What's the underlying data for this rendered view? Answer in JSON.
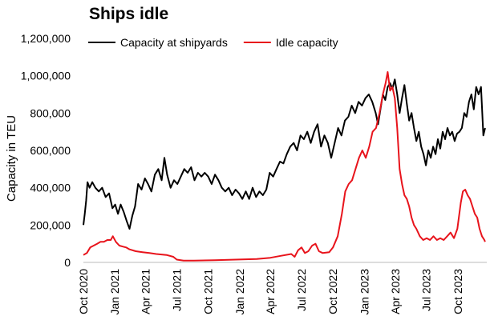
{
  "chart_data": {
    "type": "line",
    "title": "Ships idle",
    "ylabel": "Capacity in TEU",
    "xlabel": "",
    "ylim": [
      0,
      1200000
    ],
    "yticks": [
      0,
      200000,
      400000,
      600000,
      800000,
      1000000,
      1200000
    ],
    "ytick_labels": [
      "0",
      "200,000",
      "400,000",
      "600,000",
      "800,000",
      "1,000,000",
      "1,200,000"
    ],
    "xticks": [
      "2020-10-01",
      "2021-01-01",
      "2021-04-01",
      "2021-07-01",
      "2021-10-01",
      "2022-01-01",
      "2022-04-01",
      "2022-07-01",
      "2022-10-01",
      "2023-01-01",
      "2023-04-01",
      "2023-07-01",
      "2023-10-01"
    ],
    "xtick_labels": [
      "Oct 2020",
      "Jan 2021",
      "Apr 2021",
      "Jul 2021",
      "Oct 2021",
      "Jan 2022",
      "Apr 2022",
      "Jul 2022",
      "Oct 2022",
      "Jan 2023",
      "Apr 2023",
      "Jul 2023",
      "Oct 2023"
    ],
    "xlim": [
      "2020-10-01",
      "2023-12-25"
    ],
    "grid": false,
    "legend": "top",
    "series": [
      {
        "name": "Capacity at shipyards",
        "color": "#000000",
        "points": [
          [
            "2020-10-01",
            200000
          ],
          [
            "2020-10-05",
            260000
          ],
          [
            "2020-10-09",
            330000
          ],
          [
            "2020-10-13",
            430000
          ],
          [
            "2020-10-19",
            400000
          ],
          [
            "2020-10-27",
            430000
          ],
          [
            "2020-11-05",
            400000
          ],
          [
            "2020-11-15",
            380000
          ],
          [
            "2020-11-25",
            400000
          ],
          [
            "2020-12-05",
            350000
          ],
          [
            "2020-12-15",
            370000
          ],
          [
            "2020-12-25",
            290000
          ],
          [
            "2021-01-02",
            310000
          ],
          [
            "2021-01-10",
            260000
          ],
          [
            "2021-01-18",
            310000
          ],
          [
            "2021-01-27",
            270000
          ],
          [
            "2021-02-05",
            220000
          ],
          [
            "2021-02-13",
            180000
          ],
          [
            "2021-02-21",
            250000
          ],
          [
            "2021-03-01",
            300000
          ],
          [
            "2021-03-10",
            420000
          ],
          [
            "2021-03-20",
            390000
          ],
          [
            "2021-03-30",
            450000
          ],
          [
            "2021-04-08",
            420000
          ],
          [
            "2021-04-18",
            380000
          ],
          [
            "2021-04-28",
            470000
          ],
          [
            "2021-05-08",
            500000
          ],
          [
            "2021-05-18",
            440000
          ],
          [
            "2021-05-26",
            560000
          ],
          [
            "2021-06-03",
            470000
          ],
          [
            "2021-06-13",
            400000
          ],
          [
            "2021-06-23",
            440000
          ],
          [
            "2021-07-03",
            420000
          ],
          [
            "2021-07-13",
            460000
          ],
          [
            "2021-07-23",
            500000
          ],
          [
            "2021-08-02",
            480000
          ],
          [
            "2021-08-12",
            510000
          ],
          [
            "2021-08-22",
            440000
          ],
          [
            "2021-09-01",
            480000
          ],
          [
            "2021-09-11",
            460000
          ],
          [
            "2021-09-21",
            480000
          ],
          [
            "2021-10-01",
            460000
          ],
          [
            "2021-10-11",
            420000
          ],
          [
            "2021-10-21",
            470000
          ],
          [
            "2021-10-31",
            440000
          ],
          [
            "2021-11-10",
            400000
          ],
          [
            "2021-11-20",
            380000
          ],
          [
            "2021-11-30",
            400000
          ],
          [
            "2021-12-10",
            360000
          ],
          [
            "2021-12-20",
            390000
          ],
          [
            "2021-12-30",
            370000
          ],
          [
            "2022-01-09",
            340000
          ],
          [
            "2022-01-19",
            380000
          ],
          [
            "2022-01-29",
            340000
          ],
          [
            "2022-02-08",
            400000
          ],
          [
            "2022-02-18",
            350000
          ],
          [
            "2022-02-28",
            380000
          ],
          [
            "2022-03-10",
            360000
          ],
          [
            "2022-03-20",
            390000
          ],
          [
            "2022-03-30",
            480000
          ],
          [
            "2022-04-09",
            460000
          ],
          [
            "2022-04-19",
            500000
          ],
          [
            "2022-04-29",
            540000
          ],
          [
            "2022-05-09",
            530000
          ],
          [
            "2022-05-19",
            580000
          ],
          [
            "2022-05-29",
            620000
          ],
          [
            "2022-06-08",
            640000
          ],
          [
            "2022-06-18",
            600000
          ],
          [
            "2022-06-28",
            680000
          ],
          [
            "2022-07-08",
            660000
          ],
          [
            "2022-07-18",
            700000
          ],
          [
            "2022-07-28",
            640000
          ],
          [
            "2022-08-07",
            700000
          ],
          [
            "2022-08-17",
            740000
          ],
          [
            "2022-08-27",
            620000
          ],
          [
            "2022-09-06",
            680000
          ],
          [
            "2022-09-16",
            640000
          ],
          [
            "2022-09-26",
            560000
          ],
          [
            "2022-10-06",
            640000
          ],
          [
            "2022-10-16",
            720000
          ],
          [
            "2022-10-26",
            680000
          ],
          [
            "2022-11-05",
            760000
          ],
          [
            "2022-11-15",
            780000
          ],
          [
            "2022-11-25",
            840000
          ],
          [
            "2022-12-05",
            800000
          ],
          [
            "2022-12-15",
            860000
          ],
          [
            "2022-12-25",
            840000
          ],
          [
            "2023-01-04",
            880000
          ],
          [
            "2023-01-14",
            900000
          ],
          [
            "2023-01-24",
            860000
          ],
          [
            "2023-02-03",
            800000
          ],
          [
            "2023-02-10",
            740000
          ],
          [
            "2023-02-17",
            820000
          ],
          [
            "2023-02-24",
            900000
          ],
          [
            "2023-03-03",
            870000
          ],
          [
            "2023-03-10",
            940000
          ],
          [
            "2023-03-17",
            960000
          ],
          [
            "2023-03-24",
            930000
          ],
          [
            "2023-03-31",
            980000
          ],
          [
            "2023-04-07",
            900000
          ],
          [
            "2023-04-14",
            800000
          ],
          [
            "2023-04-21",
            880000
          ],
          [
            "2023-04-28",
            950000
          ],
          [
            "2023-05-05",
            850000
          ],
          [
            "2023-05-12",
            760000
          ],
          [
            "2023-05-19",
            800000
          ],
          [
            "2023-05-26",
            720000
          ],
          [
            "2023-06-02",
            650000
          ],
          [
            "2023-06-09",
            700000
          ],
          [
            "2023-06-16",
            620000
          ],
          [
            "2023-06-23",
            580000
          ],
          [
            "2023-06-30",
            520000
          ],
          [
            "2023-07-07",
            600000
          ],
          [
            "2023-07-14",
            560000
          ],
          [
            "2023-07-21",
            620000
          ],
          [
            "2023-07-28",
            580000
          ],
          [
            "2023-08-04",
            660000
          ],
          [
            "2023-08-11",
            610000
          ],
          [
            "2023-08-18",
            700000
          ],
          [
            "2023-08-25",
            660000
          ],
          [
            "2023-09-01",
            720000
          ],
          [
            "2023-09-08",
            680000
          ],
          [
            "2023-09-15",
            700000
          ],
          [
            "2023-09-22",
            650000
          ],
          [
            "2023-09-29",
            690000
          ],
          [
            "2023-10-06",
            700000
          ],
          [
            "2023-10-13",
            720000
          ],
          [
            "2023-10-20",
            800000
          ],
          [
            "2023-10-27",
            780000
          ],
          [
            "2023-11-03",
            860000
          ],
          [
            "2023-11-10",
            900000
          ],
          [
            "2023-11-17",
            820000
          ],
          [
            "2023-11-24",
            940000
          ],
          [
            "2023-12-01",
            900000
          ],
          [
            "2023-12-08",
            940000
          ],
          [
            "2023-12-15",
            680000
          ],
          [
            "2023-12-20",
            720000
          ]
        ]
      },
      {
        "name": "Idle capacity",
        "color": "#e8141c",
        "points": [
          [
            "2020-10-01",
            40000
          ],
          [
            "2020-10-11",
            50000
          ],
          [
            "2020-10-21",
            80000
          ],
          [
            "2020-10-31",
            90000
          ],
          [
            "2020-11-10",
            100000
          ],
          [
            "2020-11-20",
            110000
          ],
          [
            "2020-11-30",
            110000
          ],
          [
            "2020-12-10",
            120000
          ],
          [
            "2020-12-20",
            120000
          ],
          [
            "2020-12-26",
            140000
          ],
          [
            "2021-01-04",
            110000
          ],
          [
            "2021-01-14",
            90000
          ],
          [
            "2021-01-24",
            85000
          ],
          [
            "2021-02-03",
            80000
          ],
          [
            "2021-02-13",
            70000
          ],
          [
            "2021-03-03",
            60000
          ],
          [
            "2021-03-23",
            55000
          ],
          [
            "2021-04-12",
            50000
          ],
          [
            "2021-05-02",
            45000
          ],
          [
            "2021-06-01",
            40000
          ],
          [
            "2021-06-21",
            30000
          ],
          [
            "2021-07-01",
            15000
          ],
          [
            "2021-07-21",
            10000
          ],
          [
            "2021-08-20",
            10000
          ],
          [
            "2021-10-20",
            12000
          ],
          [
            "2021-12-20",
            15000
          ],
          [
            "2022-02-20",
            18000
          ],
          [
            "2022-04-01",
            25000
          ],
          [
            "2022-05-01",
            35000
          ],
          [
            "2022-06-01",
            45000
          ],
          [
            "2022-06-11",
            30000
          ],
          [
            "2022-06-21",
            65000
          ],
          [
            "2022-07-01",
            80000
          ],
          [
            "2022-07-11",
            50000
          ],
          [
            "2022-07-21",
            60000
          ],
          [
            "2022-08-01",
            90000
          ],
          [
            "2022-08-11",
            100000
          ],
          [
            "2022-08-21",
            60000
          ],
          [
            "2022-09-01",
            50000
          ],
          [
            "2022-09-20",
            55000
          ],
          [
            "2022-10-01",
            80000
          ],
          [
            "2022-10-15",
            140000
          ],
          [
            "2022-10-27",
            260000
          ],
          [
            "2022-11-06",
            380000
          ],
          [
            "2022-11-16",
            420000
          ],
          [
            "2022-11-26",
            440000
          ],
          [
            "2022-12-06",
            500000
          ],
          [
            "2022-12-16",
            560000
          ],
          [
            "2022-12-26",
            600000
          ],
          [
            "2023-01-05",
            560000
          ],
          [
            "2023-01-15",
            620000
          ],
          [
            "2023-01-25",
            700000
          ],
          [
            "2023-02-04",
            720000
          ],
          [
            "2023-02-14",
            800000
          ],
          [
            "2023-02-24",
            900000
          ],
          [
            "2023-03-04",
            960000
          ],
          [
            "2023-03-10",
            1020000
          ],
          [
            "2023-03-17",
            920000
          ],
          [
            "2023-03-24",
            940000
          ],
          [
            "2023-03-31",
            880000
          ],
          [
            "2023-04-07",
            720000
          ],
          [
            "2023-04-14",
            500000
          ],
          [
            "2023-04-21",
            420000
          ],
          [
            "2023-04-28",
            360000
          ],
          [
            "2023-05-05",
            340000
          ],
          [
            "2023-05-12",
            300000
          ],
          [
            "2023-05-19",
            240000
          ],
          [
            "2023-05-26",
            200000
          ],
          [
            "2023-06-02",
            180000
          ],
          [
            "2023-06-12",
            140000
          ],
          [
            "2023-06-22",
            120000
          ],
          [
            "2023-07-02",
            130000
          ],
          [
            "2023-07-12",
            120000
          ],
          [
            "2023-07-22",
            140000
          ],
          [
            "2023-08-01",
            120000
          ],
          [
            "2023-08-11",
            130000
          ],
          [
            "2023-08-21",
            120000
          ],
          [
            "2023-08-31",
            140000
          ],
          [
            "2023-09-10",
            160000
          ],
          [
            "2023-09-20",
            130000
          ],
          [
            "2023-09-30",
            180000
          ],
          [
            "2023-10-10",
            320000
          ],
          [
            "2023-10-16",
            380000
          ],
          [
            "2023-10-23",
            390000
          ],
          [
            "2023-10-30",
            360000
          ],
          [
            "2023-11-06",
            340000
          ],
          [
            "2023-11-13",
            300000
          ],
          [
            "2023-11-20",
            260000
          ],
          [
            "2023-11-27",
            240000
          ],
          [
            "2023-12-04",
            180000
          ],
          [
            "2023-12-11",
            140000
          ],
          [
            "2023-12-18",
            120000
          ],
          [
            "2023-12-20",
            110000
          ]
        ]
      }
    ]
  }
}
